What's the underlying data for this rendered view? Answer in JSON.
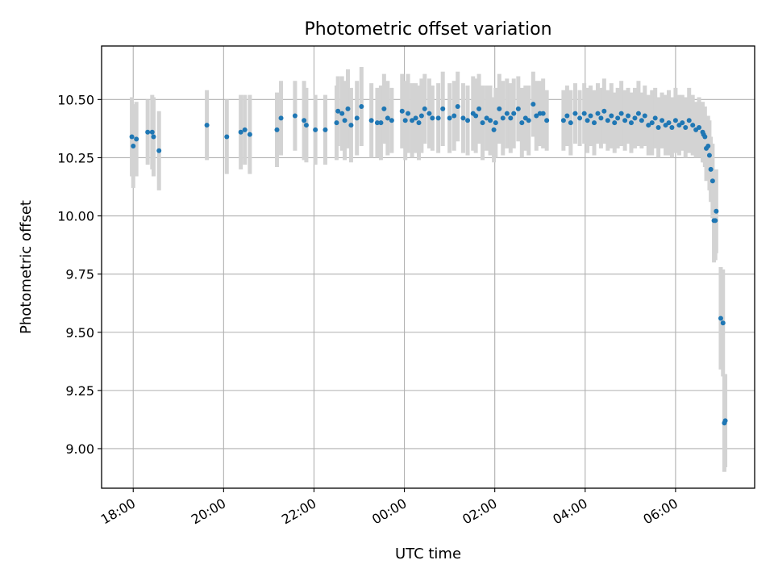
{
  "chart_data": {
    "type": "scatter",
    "title": "Photometric offset variation",
    "xlabel": "UTC time",
    "ylabel": "Photometric offset",
    "x_unit": "hours",
    "x_ticks": [
      {
        "x": 18,
        "label": "18:00"
      },
      {
        "x": 20,
        "label": "20:00"
      },
      {
        "x": 22,
        "label": "22:00"
      },
      {
        "x": 24,
        "label": "00:00"
      },
      {
        "x": 26,
        "label": "02:00"
      },
      {
        "x": 28,
        "label": "04:00"
      },
      {
        "x": 30,
        "label": "06:00"
      }
    ],
    "y_ticks": [
      {
        "y": 9.0,
        "label": "9.00"
      },
      {
        "y": 9.25,
        "label": "9.25"
      },
      {
        "y": 9.5,
        "label": "9.50"
      },
      {
        "y": 9.75,
        "label": "9.75"
      },
      {
        "y": 10.0,
        "label": "10.00"
      },
      {
        "y": 10.25,
        "label": "10.25"
      },
      {
        "y": 10.5,
        "label": "10.50"
      }
    ],
    "xlim": [
      17.3,
      31.75
    ],
    "ylim": [
      8.83,
      10.73
    ],
    "grid": true,
    "marker_color": "#1f77b4",
    "errorbar_color": "#d3d3d3",
    "series": [
      {
        "x": [
          17.97,
          18.0,
          18.07,
          18.32,
          18.42,
          18.45,
          18.57,
          19.63,
          20.07,
          20.38,
          20.47,
          20.58,
          21.18,
          21.27,
          21.58,
          21.78,
          21.83,
          22.03,
          22.25,
          22.5,
          22.53,
          22.62,
          22.68,
          22.75,
          22.82,
          22.95,
          23.05,
          23.27,
          23.4,
          23.48,
          23.55,
          23.63,
          23.72,
          23.95,
          24.02,
          24.08,
          24.17,
          24.25,
          24.32,
          24.38,
          24.45,
          24.55,
          24.62,
          24.75,
          24.85,
          25.0,
          25.1,
          25.18,
          25.3,
          25.4,
          25.52,
          25.58,
          25.65,
          25.73,
          25.82,
          25.9,
          25.98,
          26.02,
          26.1,
          26.18,
          26.27,
          26.35,
          26.42,
          26.52,
          26.6,
          26.68,
          26.75,
          26.85,
          26.92,
          27.0,
          27.07,
          27.15
        ],
        "y": [
          10.34,
          10.3,
          10.33,
          10.36,
          10.36,
          10.34,
          10.28,
          10.39,
          10.34,
          10.36,
          10.37,
          10.35,
          10.37,
          10.42,
          10.43,
          10.41,
          10.39,
          10.37,
          10.37,
          10.4,
          10.45,
          10.44,
          10.41,
          10.46,
          10.39,
          10.42,
          10.47,
          10.41,
          10.4,
          10.4,
          10.46,
          10.42,
          10.41,
          10.45,
          10.41,
          10.44,
          10.41,
          10.42,
          10.4,
          10.43,
          10.46,
          10.44,
          10.42,
          10.42,
          10.46,
          10.42,
          10.43,
          10.47,
          10.42,
          10.41,
          10.44,
          10.43,
          10.46,
          10.4,
          10.42,
          10.41,
          10.37,
          10.4,
          10.46,
          10.42,
          10.44,
          10.42,
          10.44,
          10.46,
          10.4,
          10.42,
          10.41,
          10.48,
          10.43,
          10.44,
          10.44,
          10.41
        ],
        "err": [
          0.17,
          0.18,
          0.16,
          0.14,
          0.16,
          0.17,
          0.17,
          0.15,
          0.16,
          0.16,
          0.15,
          0.17,
          0.16,
          0.16,
          0.15,
          0.17,
          0.16,
          0.15,
          0.15,
          0.16,
          0.15,
          0.16,
          0.17,
          0.17,
          0.16,
          0.16,
          0.17,
          0.16,
          0.15,
          0.16,
          0.15,
          0.16,
          0.14,
          0.16,
          0.17,
          0.17,
          0.16,
          0.15,
          0.16,
          0.16,
          0.15,
          0.15,
          0.14,
          0.15,
          0.16,
          0.15,
          0.15,
          0.15,
          0.15,
          0.15,
          0.16,
          0.16,
          0.15,
          0.16,
          0.14,
          0.15,
          0.14,
          0.15,
          0.15,
          0.16,
          0.15,
          0.15,
          0.15,
          0.14,
          0.15,
          0.14,
          0.15,
          0.14,
          0.15,
          0.14,
          0.15,
          0.13
        ]
      },
      {
        "x": [
          27.52,
          27.6,
          27.68,
          27.78,
          27.88,
          27.98,
          28.05,
          28.12,
          28.2,
          28.28,
          28.35,
          28.42,
          28.5,
          28.58,
          28.65,
          28.72,
          28.8,
          28.88,
          28.95,
          29.02,
          29.1,
          29.18,
          29.25,
          29.32,
          29.4,
          29.48,
          29.55,
          29.62,
          29.7,
          29.78,
          29.85,
          29.92,
          30.0,
          30.08,
          30.15,
          30.22,
          30.3,
          30.38,
          30.45,
          30.52,
          30.6,
          30.62,
          30.65,
          30.68,
          30.72,
          30.75,
          30.78,
          30.82,
          30.85,
          30.88,
          30.9,
          31.0,
          31.05,
          31.08,
          31.1
        ],
        "y": [
          10.41,
          10.43,
          10.4,
          10.44,
          10.42,
          10.44,
          10.41,
          10.43,
          10.4,
          10.44,
          10.42,
          10.45,
          10.41,
          10.43,
          10.4,
          10.42,
          10.44,
          10.41,
          10.43,
          10.4,
          10.42,
          10.44,
          10.41,
          10.43,
          10.39,
          10.4,
          10.42,
          10.38,
          10.41,
          10.39,
          10.4,
          10.38,
          10.41,
          10.39,
          10.4,
          10.38,
          10.41,
          10.39,
          10.37,
          10.38,
          10.36,
          10.35,
          10.34,
          10.29,
          10.3,
          10.26,
          10.2,
          10.15,
          9.98,
          9.98,
          10.02,
          9.56,
          9.54,
          9.11,
          9.12
        ],
        "err": [
          0.13,
          0.13,
          0.14,
          0.13,
          0.12,
          0.13,
          0.14,
          0.13,
          0.14,
          0.13,
          0.13,
          0.14,
          0.13,
          0.14,
          0.13,
          0.13,
          0.14,
          0.13,
          0.12,
          0.13,
          0.13,
          0.14,
          0.12,
          0.13,
          0.13,
          0.14,
          0.13,
          0.13,
          0.12,
          0.13,
          0.14,
          0.13,
          0.14,
          0.13,
          0.12,
          0.13,
          0.14,
          0.13,
          0.12,
          0.13,
          0.13,
          0.12,
          0.13,
          0.14,
          0.13,
          0.15,
          0.14,
          0.16,
          0.18,
          0.17,
          0.18,
          0.22,
          0.23,
          0.21,
          0.2
        ]
      }
    ]
  }
}
